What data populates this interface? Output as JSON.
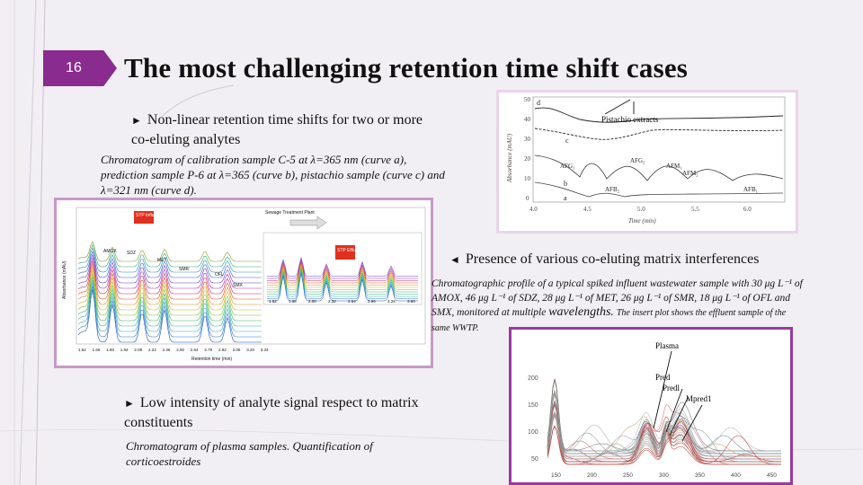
{
  "slide": {
    "number": "16",
    "title": "The most challenging retention time shift cases"
  },
  "section1": {
    "bullet": "Non-linear retention time shifts for two or more co-eluting analytes",
    "caption": "Chromatogram of calibration sample C-5 at λ=365 nm (curve a), prediction sample P-6 at λ=365 (curve b), pistachio sample (curve c) and λ=321 nm (curve d).",
    "figure": {
      "annotation": "Pistachio extracts",
      "curve_labels": [
        "d",
        "c",
        "b",
        "a"
      ],
      "peak_labels": [
        "AFG₁",
        "AFG₂",
        "AFM₁",
        "AFM₂",
        "AFB₂",
        "AFB₁"
      ],
      "y_ticks": [
        "50",
        "40",
        "30",
        "20",
        "10",
        "0"
      ],
      "x_ticks": [
        "4.0",
        "4.5",
        "5.0",
        "5.5",
        "6.0"
      ],
      "ylabel": "Absorbance (mAU)",
      "xlabel": "Time (min)"
    }
  },
  "section2": {
    "bullet": "Presence of various co-eluting matrix interferences",
    "caption_italic": "Chromatographic profile of a typical spiked influent wastewater sample with 30 μg L⁻¹ of AMOX, 46 μg L⁻¹ of SDZ, 28 μg L⁻¹ of MET, 26 μg L⁻¹ of SMR, 18 μg L⁻¹ of OFL and SMX, monitored at multiple",
    "caption_tail_big": "wavelengths.",
    "caption_tail_small": "The insert plot shows the effluent sample of the same WWTP.",
    "figure": {
      "main_tag": "STP Influent",
      "inset_tag": "STP Effluent",
      "insert_header": "Sewage Treatment Plant",
      "labels": [
        "AMOX",
        "SDZ",
        "MET",
        "SMR",
        "OFL",
        "SMX"
      ],
      "x_ticks": [
        "1.52",
        "1.66",
        "1.80",
        "1.94",
        "2.08",
        "2.22",
        "2.36",
        "2.50",
        "2.64",
        "2.78",
        "2.92",
        "3.06",
        "3.20",
        "3.34"
      ],
      "inset_x_ticks": [
        "1.52",
        "1.68",
        "2.00",
        "2.32",
        "2.64",
        "2.96",
        "3.28",
        "3.60"
      ],
      "xlabel": "Retention time (min)",
      "ylabel": "Absorbance (mAU)"
    }
  },
  "section3": {
    "bullet": "Low intensity of analyte signal respect to matrix constituents",
    "caption": "Chromatogram of plasma samples. Quantification of corticoestroides",
    "figure": {
      "labels": [
        "Plasma",
        "Pred",
        "Predl",
        "Mpred1"
      ],
      "y_ticks": [
        "200",
        "150",
        "100",
        "50"
      ],
      "x_ticks": [
        "150",
        "200",
        "250",
        "300",
        "350",
        "400",
        "450"
      ]
    }
  },
  "colors": {
    "accent": "#8a2b8f",
    "background": "#f1eff3",
    "tag_red": "#e0301e"
  }
}
